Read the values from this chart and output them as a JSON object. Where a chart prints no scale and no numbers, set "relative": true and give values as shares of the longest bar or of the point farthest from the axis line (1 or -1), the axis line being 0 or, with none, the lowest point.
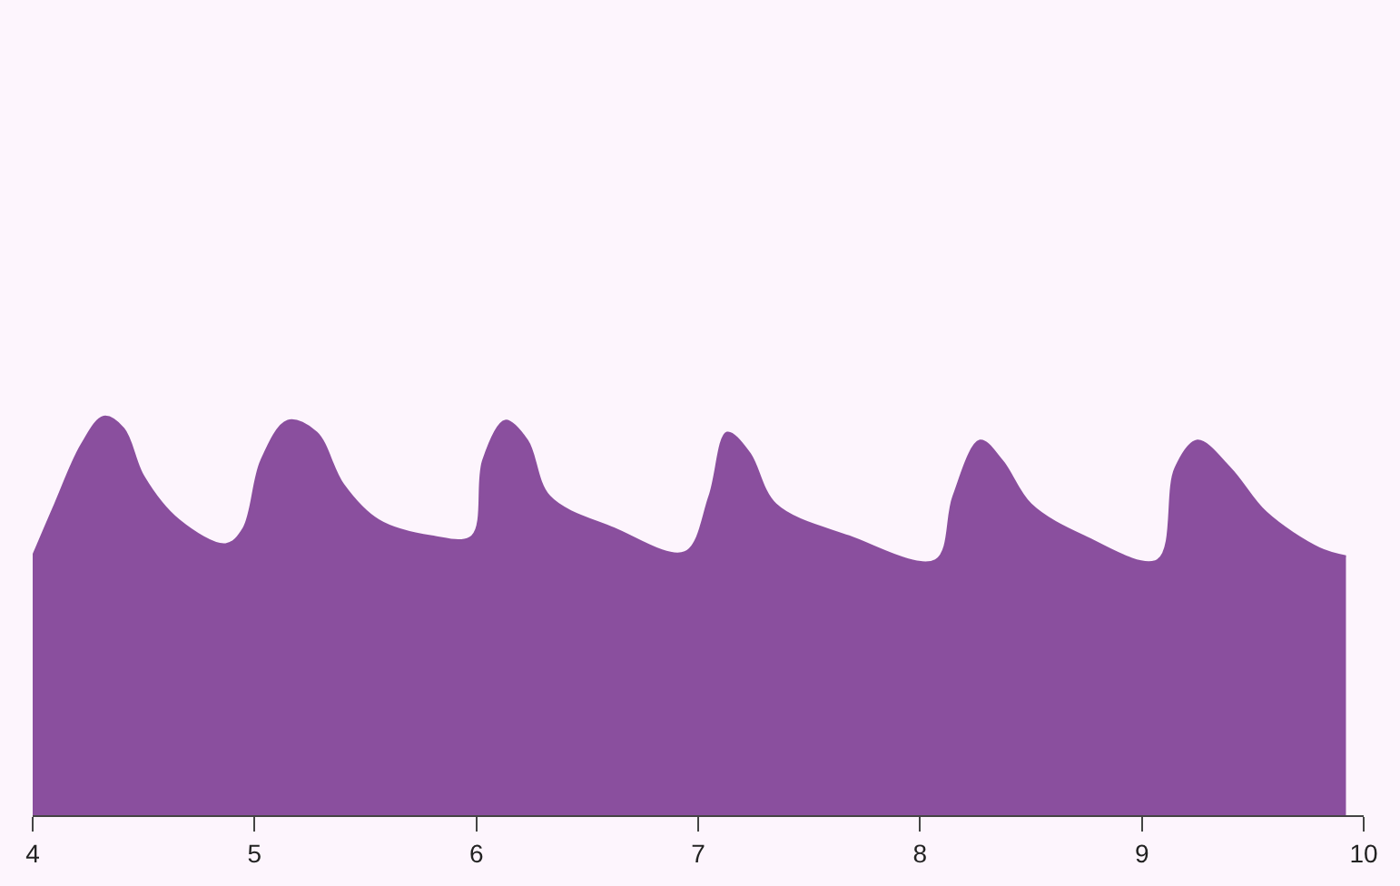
{
  "chart_data": {
    "type": "area",
    "relative": true,
    "xlim": [
      4,
      10
    ],
    "xticks": [
      4,
      5,
      6,
      7,
      8,
      9,
      10
    ],
    "series": [
      {
        "color": "#8a4f9e",
        "x": [
          4,
          4.1,
          4.22,
          4.32,
          4.41,
          4.5,
          4.66,
          4.87,
          4.95,
          5.03,
          5.15,
          5.28,
          5.4,
          5.56,
          5.8,
          5.98,
          6.03,
          6.13,
          6.23,
          6.33,
          6.62,
          6.94,
          7.05,
          7.13,
          7.23,
          7.35,
          7.68,
          8.07,
          8.15,
          8.27,
          8.37,
          8.5,
          8.74,
          9.07,
          9.15,
          9.25,
          9.4,
          9.56,
          9.8,
          9.92
        ],
        "values": [
          0.65,
          0.78,
          0.93,
          1.0,
          0.97,
          0.85,
          0.74,
          0.68,
          0.72,
          0.89,
          0.99,
          0.96,
          0.83,
          0.74,
          0.7,
          0.7,
          0.89,
          0.99,
          0.94,
          0.8,
          0.72,
          0.66,
          0.8,
          0.96,
          0.91,
          0.78,
          0.7,
          0.64,
          0.8,
          0.94,
          0.89,
          0.78,
          0.7,
          0.64,
          0.87,
          0.94,
          0.87,
          0.76,
          0.67,
          0.65
        ]
      }
    ]
  }
}
